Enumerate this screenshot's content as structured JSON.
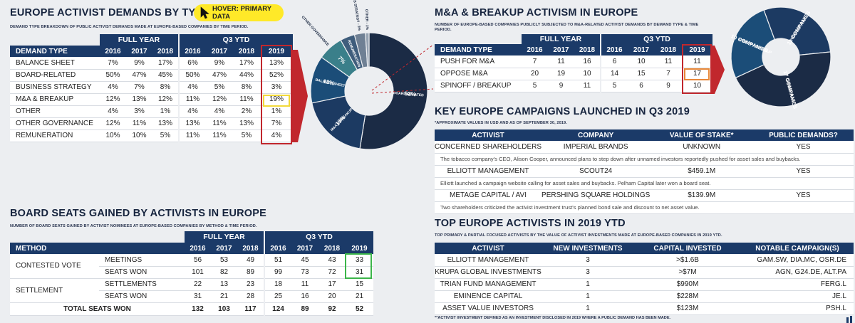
{
  "hover_badge": "HOVER: PRIMARY DATA",
  "panel1": {
    "title": "EUROPE ACTIVIST DEMANDS BY TYPE",
    "subtitle": "DEMAND TYPE BREAKDOWN OF PUBLIC ACTIVIST DEMANDS MADE AT EUROPE-BASED COMPANIES BY TIME PERIOD.",
    "group_full": "FULL YEAR",
    "group_q3": "Q3 YTD",
    "col_head": "DEMAND TYPE",
    "years_full": [
      "2016",
      "2017",
      "2018"
    ],
    "years_q3": [
      "2016",
      "2017",
      "2018",
      "2019"
    ],
    "rows": [
      {
        "label": "BALANCE SHEET",
        "v": [
          "7%",
          "9%",
          "17%",
          "6%",
          "9%",
          "17%",
          "13%"
        ]
      },
      {
        "label": "BOARD-RELATED",
        "v": [
          "50%",
          "47%",
          "45%",
          "50%",
          "47%",
          "44%",
          "52%"
        ]
      },
      {
        "label": "BUSINESS STRATEGY",
        "v": [
          "4%",
          "7%",
          "8%",
          "4%",
          "5%",
          "8%",
          "3%"
        ]
      },
      {
        "label": "M&A & BREAKUP",
        "v": [
          "12%",
          "13%",
          "12%",
          "11%",
          "12%",
          "11%",
          "19%"
        ]
      },
      {
        "label": "OTHER",
        "v": [
          "4%",
          "3%",
          "1%",
          "4%",
          "4%",
          "2%",
          "1%"
        ]
      },
      {
        "label": "OTHER GOVERNANCE",
        "v": [
          "12%",
          "11%",
          "13%",
          "13%",
          "11%",
          "13%",
          "7%"
        ]
      },
      {
        "label": "REMUNERATION",
        "v": [
          "10%",
          "10%",
          "5%",
          "11%",
          "11%",
          "5%",
          "4%"
        ]
      }
    ]
  },
  "panel2": {
    "title": "M&A & BREAKUP ACTIVISM IN EUROPE",
    "subtitle1": "NUMBER OF EUROPE-BASED COMPANIES PUBLICLY SUBJECTED TO M&A-RELATED ACTIVIST DEMANDS BY DEMAND TYPE & TIME",
    "subtitle2": "PERIOD.",
    "group_full": "FULL YEAR",
    "group_q3": "Q3 YTD",
    "col_head": "DEMAND TYPE",
    "years_full": [
      "2016",
      "2017",
      "2018"
    ],
    "years_q3": [
      "2016",
      "2017",
      "2018",
      "2019"
    ],
    "rows": [
      {
        "label": "PUSH FOR M&A",
        "v": [
          "7",
          "11",
          "16",
          "6",
          "10",
          "11",
          "11"
        ]
      },
      {
        "label": "OPPOSE M&A",
        "v": [
          "20",
          "19",
          "10",
          "14",
          "15",
          "7",
          "17"
        ]
      },
      {
        "label": "SPINOFF / BREAKUP",
        "v": [
          "5",
          "9",
          "11",
          "5",
          "6",
          "9",
          "10"
        ]
      }
    ]
  },
  "panel3": {
    "title": "KEY EUROPE CAMPAIGNS LAUNCHED IN Q3 2019",
    "subtitle": "*APPROXIMATE VALUES IN USD AND AS OF SEPTEMBER 30, 2019.",
    "headers": [
      "ACTIVIST",
      "COMPANY",
      "VALUE OF STAKE*",
      "PUBLIC DEMANDS?"
    ],
    "rows": [
      {
        "activist": "CONCERNED SHAREHOLDERS",
        "company": "IMPERIAL BRANDS",
        "value": "UNKNOWN",
        "demands": "YES",
        "note": "The tobacco company's CEO, Alison Cooper, announced plans to step down after unnamed investors reportedly pushed for asset sales and buybacks."
      },
      {
        "activist": "ELLIOTT MANAGEMENT",
        "company": "SCOUT24",
        "value": "$459.1M",
        "demands": "YES",
        "note": "Elliott launched a campaign website calling for asset sales and buybacks. Pelham Capital later won a board seat."
      },
      {
        "activist": "METAGE CAPITAL / AVI",
        "company": "PERSHING SQUARE HOLDINGS",
        "value": "$139.9M",
        "demands": "YES",
        "note": "Two shareholders criticized the activist investment trust's planned bond sale and discount to net asset value."
      }
    ]
  },
  "panel4": {
    "title": "BOARD SEATS GAINED BY ACTIVISTS IN EUROPE",
    "subtitle": "NUMBER OF BOARD SEATS GAINED BY ACTIVIST NOMINEES AT EUROPE-BASED COMPANIES BY METHOD & TIME PERIOD.",
    "group_full": "FULL YEAR",
    "group_q3": "Q3 YTD",
    "col_head": "METHOD",
    "years_full": [
      "2016",
      "2017",
      "2018"
    ],
    "years_q3": [
      "2016",
      "2017",
      "2018",
      "2019"
    ],
    "groups": [
      {
        "label": "CONTESTED VOTE",
        "rows": [
          {
            "label": "MEETINGS",
            "v": [
              "56",
              "53",
              "49",
              "51",
              "45",
              "43",
              "33"
            ]
          },
          {
            "label": "SEATS WON",
            "v": [
              "101",
              "82",
              "89",
              "99",
              "73",
              "72",
              "31"
            ]
          }
        ]
      },
      {
        "label": "SETTLEMENT",
        "rows": [
          {
            "label": "SETTLEMENTS",
            "v": [
              "22",
              "13",
              "23",
              "18",
              "11",
              "17",
              "15"
            ]
          },
          {
            "label": "SEATS WON",
            "v": [
              "31",
              "21",
              "28",
              "25",
              "16",
              "20",
              "21"
            ]
          }
        ]
      }
    ],
    "total_label": "TOTAL SEATS WON",
    "total": [
      "132",
      "103",
      "117",
      "124",
      "89",
      "92",
      "52"
    ]
  },
  "panel5": {
    "title": "TOP EUROPE ACTIVISTS IN 2019 YTD",
    "subtitle": "TOP PRIMARY & PARTIAL FOCUSED ACTIVISTS BY THE VALUE OF ACTIVIST INVESTMENTS MADE AT EUROPE-BASED COMPANIES IN 2019 YTD.",
    "headers": [
      "ACTIVIST",
      "NEW INVESTMENTS",
      "CAPITAL INVESTED",
      "NOTABLE CAMPAIGN(S)"
    ],
    "rows": [
      {
        "activist": "ELLIOTT MANAGEMENT",
        "inv": "3",
        "cap": ">$1.6B",
        "camp": "GAM.SW, DIA.MC, OSR.DE"
      },
      {
        "activist": "KRUPA GLOBAL INVESTMENTS",
        "inv": "3",
        "cap": ">$7M",
        "camp": "AGN, G24.DE, ALT.PA"
      },
      {
        "activist": "TRIAN FUND MANAGEMENT",
        "inv": "1",
        "cap": "$990M",
        "camp": "FERG.L"
      },
      {
        "activist": "EMINENCE CAPITAL",
        "inv": "1",
        "cap": "$228M",
        "camp": "JE.L"
      },
      {
        "activist": "ASSET VALUE INVESTORS",
        "inv": "1",
        "cap": "$123M",
        "camp": "PSH.L"
      }
    ],
    "footnote": "**ACTIVIST INVESTMENT DEFINED AS AN INVESTMENT DISCLOSED IN 2019 WHERE A PUBLIC DEMAND HAS BEEN MADE."
  },
  "chart_data": [
    {
      "type": "pie",
      "labels": [
        "BOARD-RELATED",
        "M&A & BREAKUP",
        "BALANCE SHEET",
        "OTHER GOVERNANCE",
        "REMUNERATION",
        "BUSINESS STRATEGY - 3%",
        "OTHER - 1%"
      ],
      "slice_labels": [
        "52%",
        "19%",
        "13%",
        "7%",
        "",
        "",
        ""
      ],
      "values": [
        52,
        19,
        13,
        7,
        4,
        3,
        1
      ],
      "colors": [
        "#1b2b45",
        "#1c3a62",
        "#1b4d78",
        "#3a7f8a",
        "#3f5d7c",
        "#6f8094",
        "#96a3b2"
      ]
    },
    {
      "type": "pie",
      "labels": [
        "PUSH FOR M&A",
        "OPPOSE M&A",
        "SPINOFF / BREAKUP"
      ],
      "slice_labels": [
        "11 COMPANIES",
        "17 COMPANIES",
        "10 COMPANIES"
      ],
      "values": [
        11,
        17,
        10
      ],
      "colors": [
        "#1c3a62",
        "#1b2b45",
        "#1b4d78"
      ]
    }
  ]
}
